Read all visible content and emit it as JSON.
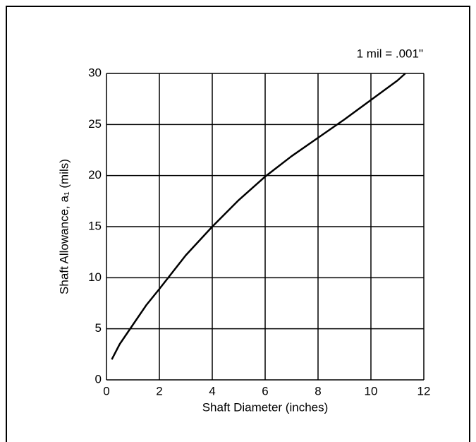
{
  "chart_data": {
    "type": "line",
    "annotation": "1 mil = .001\"",
    "x_label": "Shaft Diameter (inches)",
    "y_label": "Shaft Allowance, a₁ (mils)",
    "x": [
      0.2,
      0.5,
      1,
      1.5,
      2,
      3,
      4,
      5,
      6,
      7,
      8,
      9,
      10,
      11,
      11.3
    ],
    "series": [
      {
        "color": "#000000",
        "values": [
          2,
          3.5,
          5.4,
          7.3,
          8.9,
          12.2,
          15,
          17.6,
          19.9,
          21.9,
          23.7,
          25.5,
          27.4,
          29.3,
          30
        ]
      }
    ],
    "xlim": [
      0,
      12
    ],
    "xticks": [
      0,
      2,
      4,
      6,
      8,
      10,
      12
    ],
    "ylim": [
      0,
      30
    ],
    "yticks": [
      0,
      5,
      10,
      15,
      20,
      25,
      30
    ],
    "grid": true
  }
}
